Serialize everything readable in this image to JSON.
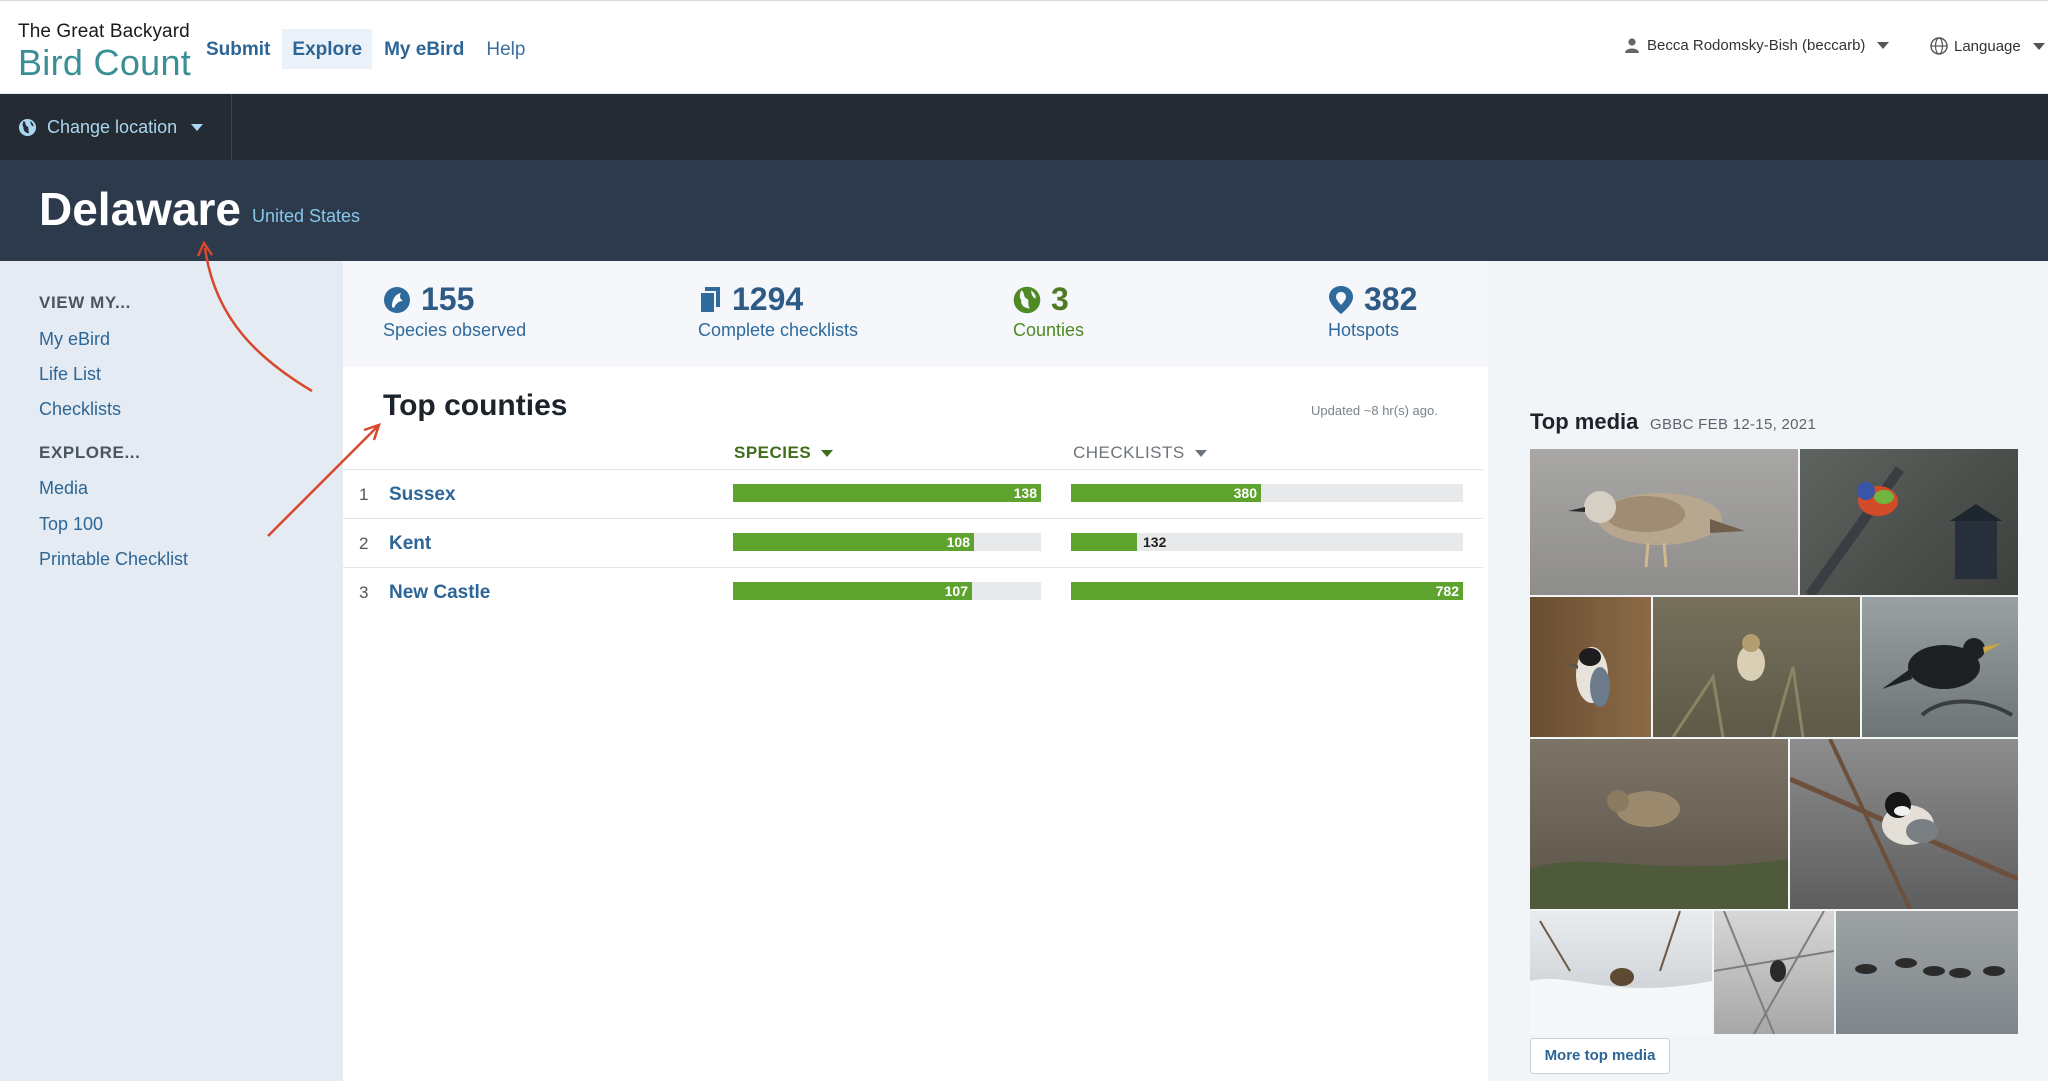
{
  "header": {
    "brand_small": "The Great Backyard",
    "brand_big": "Bird Count",
    "nav": [
      {
        "label": "Submit"
      },
      {
        "label": "Explore"
      },
      {
        "label": "My eBird"
      },
      {
        "label": "Help"
      }
    ],
    "user": "Becca Rodomsky-Bish (beccarb)",
    "language": "Language"
  },
  "location_bar": {
    "change_location": "Change location"
  },
  "region": {
    "name": "Delaware",
    "country": "United States"
  },
  "sidebar": {
    "view_heading": "VIEW MY...",
    "view_links": [
      "My eBird",
      "Life List",
      "Checklists"
    ],
    "explore_heading": "EXPLORE...",
    "explore_links": [
      "Media",
      "Top 100",
      "Printable Checklist"
    ]
  },
  "stats": {
    "species": {
      "value": "155",
      "label": "Species observed"
    },
    "checklists": {
      "value": "1294",
      "label": "Complete checklists"
    },
    "counties": {
      "value": "3",
      "label": "Counties"
    },
    "hotspots": {
      "value": "382",
      "label": "Hotspots"
    }
  },
  "top_counties": {
    "title": "Top counties",
    "updated": "Updated ~8 hr(s) ago.",
    "col_species": "SPECIES",
    "col_checklists": "CHECKLISTS",
    "rows": [
      {
        "rank": "1",
        "name": "Sussex",
        "species": 138,
        "species_label": "138",
        "checklists": 380,
        "checklists_label": "380"
      },
      {
        "rank": "2",
        "name": "Kent",
        "species": 108,
        "species_label": "108",
        "checklists": 132,
        "checklists_label": "132"
      },
      {
        "rank": "3",
        "name": "New Castle",
        "species": 107,
        "species_label": "107",
        "checklists": 782,
        "checklists_label": "782"
      }
    ]
  },
  "top_media": {
    "title": "Top media",
    "subtitle": "GBBC FEB 12-15, 2021",
    "more_button": "More top media"
  },
  "colors": {
    "bar_green": "#5ea32e",
    "link_blue": "#2d6696",
    "dark_bar": "#252b33",
    "region_bg": "#2d3a4b",
    "annotation_red": "#d9472b"
  }
}
